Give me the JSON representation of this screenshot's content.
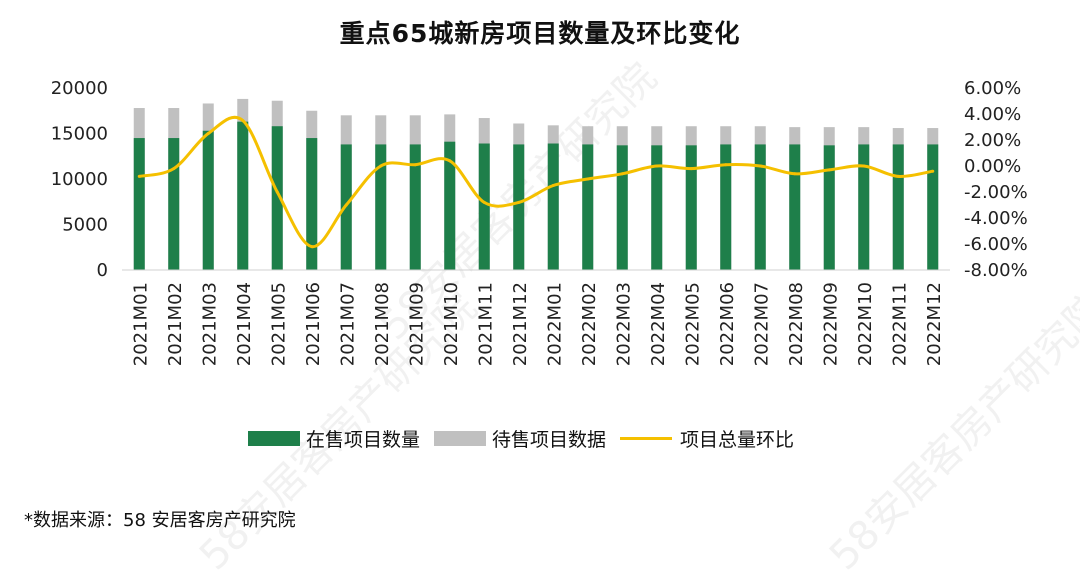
{
  "source_note": "*数据来源：58 安居客房产研究院",
  "watermark": "58安居客房产研究院",
  "chart_data": {
    "type": "bar",
    "title": "重点65城新房项目数量及环比变化",
    "categories": [
      "2021M01",
      "2021M02",
      "2021M03",
      "2021M04",
      "2021M05",
      "2021M06",
      "2021M07",
      "2021M08",
      "2021M09",
      "2021M10",
      "2021M11",
      "2021M12",
      "2022M01",
      "2022M02",
      "2022M03",
      "2022M04",
      "2022M05",
      "2022M06",
      "2022M07",
      "2022M08",
      "2022M09",
      "2022M10",
      "2022M11",
      "2022M12"
    ],
    "series": [
      {
        "name": "在售项目数量",
        "type": "bar",
        "axis": "left",
        "color": "#1e7f4a",
        "values": [
          14500,
          14500,
          15300,
          16300,
          15800,
          14500,
          13800,
          13800,
          13800,
          14100,
          13900,
          13800,
          13900,
          13800,
          13700,
          13700,
          13700,
          13800,
          13800,
          13800,
          13700,
          13800,
          13800,
          13800
        ]
      },
      {
        "name": "待售项目数据",
        "type": "bar",
        "axis": "left",
        "color": "#c0c0c0",
        "values": [
          17800,
          17800,
          18300,
          18800,
          18600,
          17500,
          17000,
          17000,
          17000,
          17100,
          16700,
          16100,
          15900,
          15800,
          15800,
          15800,
          15800,
          15800,
          15800,
          15700,
          15700,
          15700,
          15600,
          15600
        ]
      },
      {
        "name": "项目总量环比",
        "type": "line",
        "axis": "right",
        "color": "#f5c000",
        "values": [
          -0.8,
          -0.2,
          2.5,
          3.5,
          -2.0,
          -6.2,
          -3.0,
          0.0,
          0.1,
          0.4,
          -2.8,
          -2.8,
          -1.5,
          -1.0,
          -0.6,
          0.0,
          -0.2,
          0.1,
          0.0,
          -0.6,
          -0.3,
          0.0,
          -0.8,
          -0.4
        ]
      }
    ],
    "left_axis": {
      "min": 0,
      "max": 20000,
      "ticks": [
        0,
        5000,
        10000,
        15000,
        20000
      ],
      "tick_labels": [
        "0",
        "5000",
        "10000",
        "15000",
        "20000"
      ]
    },
    "right_axis": {
      "min": -8,
      "max": 6,
      "ticks": [
        -8,
        -6,
        -4,
        -2,
        0,
        2,
        4,
        6
      ],
      "tick_labels": [
        "-8.00%",
        "-6.00%",
        "-4.00%",
        "-2.00%",
        "0.00%",
        "2.00%",
        "4.00%",
        "6.00%"
      ]
    },
    "legend_position": "bottom"
  }
}
